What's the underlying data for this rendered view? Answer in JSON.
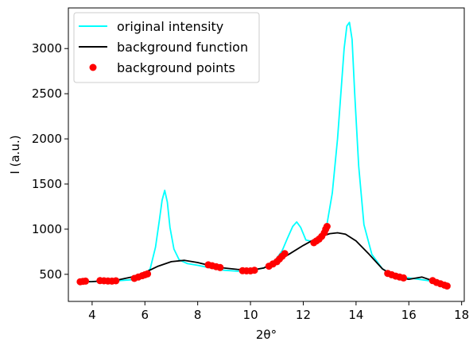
{
  "chart_data": {
    "type": "line",
    "xlabel": "2θ°",
    "ylabel": "I (a.u.)",
    "xlim": [
      3.1,
      18.1
    ],
    "ylim": [
      200,
      3450
    ],
    "xticks": [
      4,
      6,
      8,
      10,
      12,
      14,
      16,
      18
    ],
    "yticks": [
      500,
      1000,
      1500,
      2000,
      2500,
      3000
    ],
    "grid": false,
    "legend_position": "top-left",
    "series": [
      {
        "name": "original intensity",
        "kind": "line",
        "color": "#00ffff",
        "x": [
          3.5,
          4.0,
          4.5,
          5.0,
          5.5,
          5.9,
          6.2,
          6.4,
          6.55,
          6.65,
          6.75,
          6.85,
          6.95,
          7.1,
          7.3,
          7.6,
          8.0,
          8.5,
          9.0,
          9.5,
          10.0,
          10.5,
          10.9,
          11.2,
          11.4,
          11.6,
          11.75,
          11.9,
          12.1,
          12.4,
          12.7,
          12.9,
          13.1,
          13.3,
          13.45,
          13.55,
          13.65,
          13.75,
          13.85,
          13.95,
          14.1,
          14.3,
          14.6,
          15.0,
          15.5,
          16.0,
          16.5,
          17.0,
          17.5
        ],
        "y": [
          410,
          420,
          425,
          430,
          440,
          470,
          560,
          800,
          1100,
          1320,
          1430,
          1300,
          1020,
          780,
          660,
          620,
          600,
          570,
          545,
          535,
          540,
          570,
          640,
          760,
          900,
          1030,
          1080,
          1020,
          880,
          860,
          920,
          1060,
          1400,
          2000,
          2600,
          3000,
          3250,
          3290,
          3100,
          2500,
          1700,
          1050,
          720,
          560,
          480,
          460,
          440,
          420,
          370
        ]
      },
      {
        "name": "background function",
        "kind": "line",
        "color": "#000000",
        "x": [
          3.5,
          4.0,
          4.5,
          5.0,
          5.5,
          6.0,
          6.5,
          7.0,
          7.5,
          8.0,
          8.5,
          9.0,
          9.5,
          10.0,
          10.5,
          11.0,
          11.5,
          12.0,
          12.5,
          13.0,
          13.3,
          13.6,
          14.0,
          14.5,
          15.0,
          15.5,
          16.0,
          16.5,
          17.0,
          17.5
        ],
        "y": [
          415,
          420,
          428,
          440,
          470,
          520,
          590,
          640,
          655,
          630,
          595,
          570,
          555,
          545,
          570,
          640,
          730,
          820,
          900,
          950,
          960,
          945,
          870,
          720,
          560,
          470,
          445,
          470,
          420,
          360
        ]
      },
      {
        "name": "background points",
        "kind": "scatter",
        "color": "#ff0000",
        "x": [
          3.55,
          3.65,
          3.75,
          4.3,
          4.45,
          4.6,
          4.75,
          4.9,
          5.6,
          5.75,
          5.9,
          6.0,
          6.1,
          8.4,
          8.55,
          8.7,
          8.85,
          9.7,
          9.85,
          10.0,
          10.15,
          10.7,
          10.85,
          11.0,
          11.1,
          11.2,
          11.3,
          12.4,
          12.5,
          12.6,
          12.7,
          12.8,
          12.85,
          12.9,
          15.2,
          15.35,
          15.5,
          15.65,
          15.8,
          16.9,
          17.05,
          17.2,
          17.35,
          17.45
        ],
        "y": [
          418,
          422,
          425,
          430,
          428,
          426,
          425,
          428,
          455,
          470,
          485,
          495,
          505,
          605,
          595,
          585,
          575,
          540,
          538,
          538,
          545,
          590,
          615,
          640,
          670,
          700,
          730,
          850,
          870,
          890,
          920,
          960,
          1000,
          1030,
          510,
          495,
          480,
          470,
          460,
          430,
          410,
          395,
          380,
          370
        ]
      }
    ]
  }
}
